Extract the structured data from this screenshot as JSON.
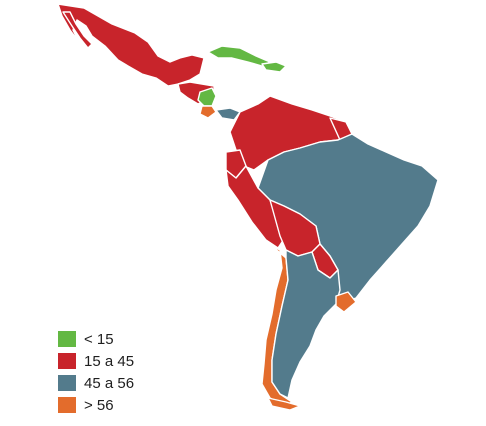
{
  "colors": {
    "lt15": "#63b843",
    "15to45": "#c8242b",
    "45to56": "#537b8c",
    "gt56": "#e36c2c"
  },
  "legend": [
    {
      "label": "< 15",
      "color_key": "lt15"
    },
    {
      "label": "15 a 45",
      "color_key": "15to45"
    },
    {
      "label": "45 a 56",
      "color_key": "45to56"
    },
    {
      "label": "> 56",
      "color_key": "gt56"
    }
  ]
}
